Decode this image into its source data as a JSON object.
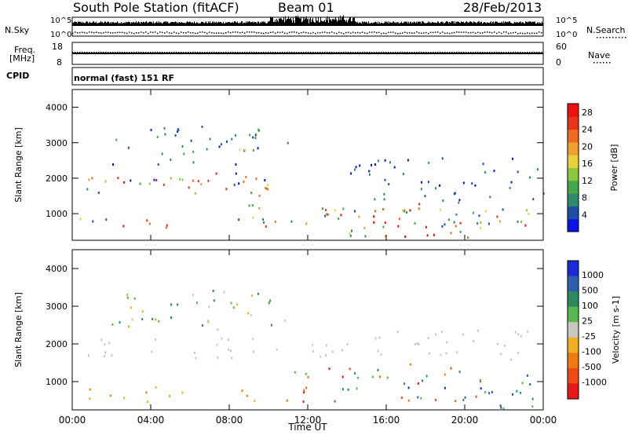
{
  "header": {
    "station": "South Pole Station (fitACF)",
    "beam": "Beam 01",
    "date": "28/Feb/2013"
  },
  "top_panels": {
    "nsky_label": "N.Sky",
    "nsky_hi": "10^5",
    "nsky_lo": "10^0",
    "nsearch_label": "N.Search",
    "nsearch_hi": "10^5",
    "nsearch_lo": "10^0",
    "freq_label": "Freq.",
    "freq_unit": "[MHz]",
    "freq_hi": "18",
    "freq_lo": "8",
    "nave_label": "Nave",
    "nave_hi": "60",
    "nave_lo": "0",
    "cpid_label": "CPID",
    "cpid_text": "normal (fast) 151 RF"
  },
  "chart_data": [
    {
      "type": "heatmap",
      "quantity": "power",
      "ylabel": "Slant Range [km]",
      "ylim": [
        250,
        4500
      ],
      "yticks": [
        1000,
        2000,
        3000,
        4000
      ],
      "xlim": [
        0,
        24
      ],
      "xticks": [
        "00:00",
        "04:00",
        "08:00",
        "12:00",
        "16:00",
        "20:00",
        "00:00"
      ],
      "colorbar": {
        "label": "Power [dB]",
        "ticks": [
          "4",
          "8",
          "12",
          "16",
          "20",
          "24",
          "28"
        ],
        "colors": [
          "#0a14e6",
          "#1e4fa8",
          "#2f8a6a",
          "#43a84a",
          "#8cc83c",
          "#e8d23c",
          "#f0a030",
          "#ef6a1e",
          "#e8331a",
          "#f01010"
        ]
      }
    },
    {
      "type": "heatmap",
      "quantity": "velocity",
      "ylabel": "Slant Range [km]",
      "ylim": [
        250,
        4500
      ],
      "yticks": [
        1000,
        2000,
        3000,
        4000
      ],
      "xlim": [
        0,
        24
      ],
      "xticks": [
        "00:00",
        "04:00",
        "08:00",
        "12:00",
        "16:00",
        "20:00",
        "00:00"
      ],
      "xlabel": "Time UT",
      "colorbar": {
        "label": "Velocity [m s-1]",
        "ticks": [
          "1000",
          "500",
          "100",
          "25",
          "-25",
          "-100",
          "-500",
          "-1000"
        ],
        "colors": [
          "#1a2ad8",
          "#2c5fb0",
          "#2d8a5e",
          "#5ab850",
          "#c8c8c0",
          "#f0b020",
          "#f07a10",
          "#ee4a12",
          "#e81818"
        ]
      }
    }
  ]
}
